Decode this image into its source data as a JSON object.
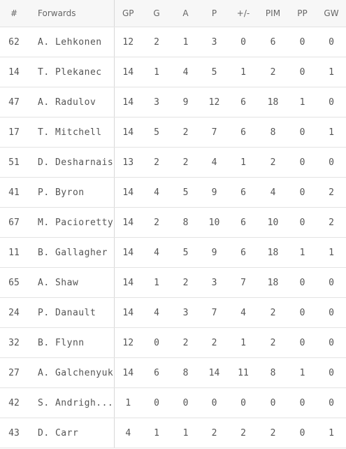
{
  "table": {
    "headers": [
      "#",
      "Forwards",
      "GP",
      "G",
      "A",
      "P",
      "+/-",
      "PIM",
      "PP",
      "GW"
    ],
    "rows": [
      [
        "62",
        "A. Lehkonen",
        "12",
        "2",
        "1",
        "3",
        "0",
        "6",
        "0",
        "0"
      ],
      [
        "14",
        "T. Plekanec",
        "14",
        "1",
        "4",
        "5",
        "1",
        "2",
        "0",
        "1"
      ],
      [
        "47",
        "A. Radulov",
        "14",
        "3",
        "9",
        "12",
        "6",
        "18",
        "1",
        "0"
      ],
      [
        "17",
        "T. Mitchell",
        "14",
        "5",
        "2",
        "7",
        "6",
        "8",
        "0",
        "1"
      ],
      [
        "51",
        "D. Desharnais",
        "13",
        "2",
        "2",
        "4",
        "1",
        "2",
        "0",
        "0"
      ],
      [
        "41",
        "P. Byron",
        "14",
        "4",
        "5",
        "9",
        "6",
        "4",
        "0",
        "2"
      ],
      [
        "67",
        "M. Pacioretty",
        "14",
        "2",
        "8",
        "10",
        "6",
        "10",
        "0",
        "2"
      ],
      [
        "11",
        "B. Gallagher",
        "14",
        "4",
        "5",
        "9",
        "6",
        "18",
        "1",
        "1"
      ],
      [
        "65",
        "A. Shaw",
        "14",
        "1",
        "2",
        "3",
        "7",
        "18",
        "0",
        "0"
      ],
      [
        "24",
        "P. Danault",
        "14",
        "4",
        "3",
        "7",
        "4",
        "2",
        "0",
        "0"
      ],
      [
        "32",
        "B. Flynn",
        "12",
        "0",
        "2",
        "2",
        "1",
        "2",
        "0",
        "0"
      ],
      [
        "27",
        "A. Galchenyuk",
        "14",
        "6",
        "8",
        "14",
        "11",
        "8",
        "1",
        "0"
      ],
      [
        "42",
        "S. Andrigh...",
        "1",
        "0",
        "0",
        "0",
        "0",
        "0",
        "0",
        "0"
      ],
      [
        "43",
        "D. Carr",
        "4",
        "1",
        "1",
        "2",
        "2",
        "2",
        "0",
        "1"
      ]
    ]
  }
}
